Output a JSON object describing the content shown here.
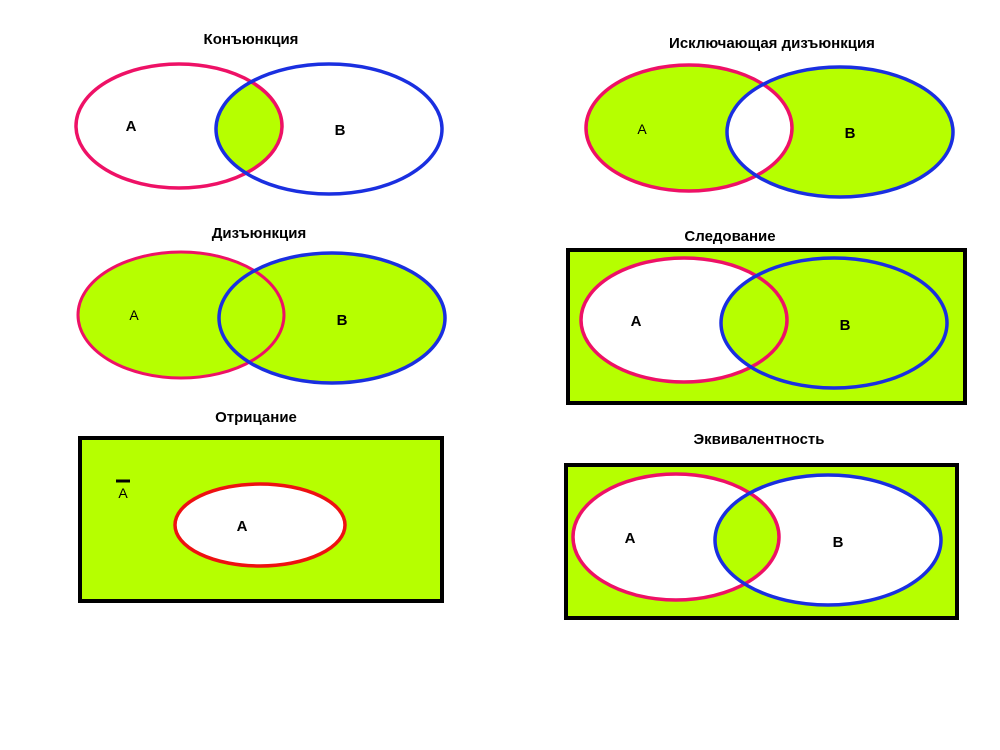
{
  "colors": {
    "fill": "#b6ff00",
    "set_a_stroke": "#ee1166",
    "set_b_stroke": "#1a2fe0",
    "negation_stroke": "#ee1111",
    "frame_stroke": "#000000",
    "background": "#ffffff"
  },
  "diagrams": {
    "conjunction": {
      "title": "Конъюнкция",
      "label_a": "A",
      "label_b": "B"
    },
    "xor": {
      "title": "Исключающая дизъюнкция",
      "label_a": "A",
      "label_b": "B"
    },
    "disjunction": {
      "title": "Дизъюнкция",
      "label_a": "A",
      "label_b": "B"
    },
    "implication": {
      "title": "Следование",
      "label_a": "A",
      "label_b": "B"
    },
    "negation": {
      "title": "Отрицание",
      "label_not_a": "A",
      "label_a": "A"
    },
    "equivalence": {
      "title": "Эквивалентность",
      "label_a": "A",
      "label_b": "B"
    }
  }
}
